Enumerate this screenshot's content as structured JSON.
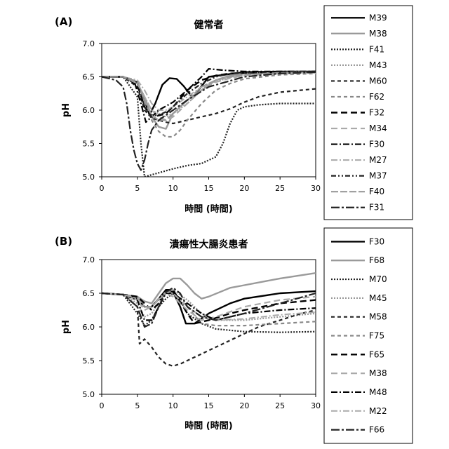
{
  "chart_data": [
    {
      "type": "line",
      "panel_label": "(A)",
      "title": "健常者",
      "xlabel": "時間 (時間)",
      "ylabel": "pH",
      "xlim": [
        0,
        30
      ],
      "ylim": [
        5.0,
        7.0
      ],
      "xticks": [
        0,
        5,
        10,
        15,
        20,
        25,
        30
      ],
      "yticks": [
        5.0,
        5.5,
        6.0,
        6.5,
        7.0
      ],
      "legend_position": "right",
      "series": [
        {
          "name": "M39",
          "color": "#000000",
          "dash": "solid",
          "width": 2.4,
          "x": [
            0,
            3,
            5,
            6,
            6.7,
            7.5,
            8.5,
            9.5,
            10.5,
            11.5,
            12.5,
            13,
            15,
            20,
            25,
            30
          ],
          "y": [
            6.5,
            6.5,
            6.42,
            6.15,
            5.93,
            6.1,
            6.38,
            6.48,
            6.47,
            6.36,
            6.22,
            6.22,
            6.5,
            6.57,
            6.58,
            6.58
          ]
        },
        {
          "name": "M38",
          "color": "#9a9a9a",
          "dash": "solid",
          "width": 2.4,
          "x": [
            0,
            3,
            5,
            6,
            7,
            8,
            9,
            10,
            12,
            14,
            16,
            18,
            20,
            25,
            30
          ],
          "y": [
            6.5,
            6.5,
            6.4,
            6.2,
            5.9,
            5.75,
            5.72,
            5.95,
            6.15,
            6.3,
            6.45,
            6.52,
            6.55,
            6.57,
            6.57
          ]
        },
        {
          "name": "F41",
          "color": "#222222",
          "dash": "2,2",
          "width": 2.2,
          "x": [
            0,
            3,
            5,
            5.5,
            6,
            8,
            10,
            12,
            14,
            16,
            17,
            18,
            19,
            20,
            22,
            25,
            28,
            30
          ],
          "y": [
            6.5,
            6.5,
            6.2,
            5.5,
            5.0,
            5.06,
            5.12,
            5.17,
            5.2,
            5.3,
            5.5,
            5.8,
            6.0,
            6.05,
            6.08,
            6.1,
            6.1,
            6.1
          ]
        },
        {
          "name": "M43",
          "color": "#9a9a9a",
          "dash": "2,2",
          "width": 2.2,
          "x": [
            0,
            3,
            5,
            6,
            7,
            8,
            9,
            10,
            12,
            15,
            20,
            25,
            30
          ],
          "y": [
            6.5,
            6.5,
            6.4,
            6.2,
            6.0,
            5.95,
            5.9,
            5.95,
            6.1,
            6.4,
            6.55,
            6.56,
            6.57
          ]
        },
        {
          "name": "M60",
          "color": "#222222",
          "dash": "5,4",
          "width": 2.2,
          "x": [
            0,
            3,
            5,
            6,
            7,
            8,
            9,
            10,
            12,
            14,
            16,
            18,
            20,
            22,
            25,
            28,
            30
          ],
          "y": [
            6.5,
            6.5,
            6.35,
            6.0,
            5.88,
            5.85,
            5.82,
            5.8,
            5.85,
            5.9,
            5.95,
            6.02,
            6.12,
            6.2,
            6.27,
            6.3,
            6.32
          ]
        },
        {
          "name": "F62",
          "color": "#888888",
          "dash": "5,4",
          "width": 2.2,
          "x": [
            0,
            3,
            5,
            6,
            7,
            8,
            9,
            10,
            11,
            12,
            14,
            16,
            18,
            20,
            25,
            30
          ],
          "y": [
            6.5,
            6.5,
            6.4,
            6.15,
            5.85,
            5.68,
            5.6,
            5.6,
            5.7,
            5.85,
            6.1,
            6.3,
            6.4,
            6.47,
            6.53,
            6.55
          ]
        },
        {
          "name": "F32",
          "color": "#000000",
          "dash": "9,5",
          "width": 2.4,
          "x": [
            0,
            3,
            5,
            6,
            7,
            8,
            9,
            10,
            12,
            14,
            16,
            18,
            20,
            25,
            30
          ],
          "y": [
            6.5,
            6.5,
            6.38,
            6.05,
            5.9,
            5.92,
            5.95,
            6.05,
            6.3,
            6.45,
            6.52,
            6.55,
            6.56,
            6.57,
            6.58
          ]
        },
        {
          "name": "M34",
          "color": "#aaaaaa",
          "dash": "9,5",
          "width": 2.2,
          "x": [
            0,
            3,
            5,
            6,
            7,
            8,
            9,
            10,
            12,
            14,
            16,
            18,
            20,
            25,
            30
          ],
          "y": [
            6.5,
            6.5,
            6.4,
            6.2,
            6.0,
            5.9,
            5.85,
            5.9,
            6.1,
            6.3,
            6.42,
            6.48,
            6.52,
            6.55,
            6.56
          ]
        },
        {
          "name": "F30",
          "color": "#000000",
          "dash": "9,3,2,3",
          "width": 2.2,
          "x": [
            0,
            3,
            4.5,
            5.5,
            6.2,
            7,
            8,
            10,
            12,
            14,
            15,
            17,
            20,
            25,
            30
          ],
          "y": [
            6.5,
            6.5,
            6.45,
            6.1,
            5.82,
            5.9,
            6.0,
            6.12,
            6.3,
            6.5,
            6.62,
            6.6,
            6.58,
            6.58,
            6.58
          ]
        },
        {
          "name": "M27",
          "color": "#aaaaaa",
          "dash": "9,3,2,3",
          "width": 2.0,
          "x": [
            0,
            3,
            5,
            6,
            7,
            8,
            9,
            10,
            12,
            14,
            16,
            18,
            20,
            25,
            30
          ],
          "y": [
            6.5,
            6.5,
            6.45,
            6.3,
            6.1,
            6.0,
            6.0,
            6.05,
            6.2,
            6.35,
            6.45,
            6.5,
            6.52,
            6.55,
            6.56
          ]
        },
        {
          "name": "M37",
          "color": "#222222",
          "dash": "7,3,2,3,2,3",
          "width": 2.2,
          "x": [
            0,
            3,
            5,
            6,
            6.7,
            7.5,
            8.5,
            9.5,
            10.5,
            12,
            14,
            16,
            18,
            20,
            25,
            30
          ],
          "y": [
            6.5,
            6.5,
            6.42,
            6.05,
            5.93,
            5.92,
            5.95,
            6.0,
            6.1,
            6.25,
            6.4,
            6.5,
            6.55,
            6.56,
            6.57,
            6.57
          ]
        },
        {
          "name": "F40",
          "color": "#9a9a9a",
          "dash": "10,3",
          "width": 2.2,
          "x": [
            0,
            3,
            5,
            6,
            7,
            8,
            9,
            10,
            12,
            14,
            16,
            18,
            20,
            25,
            30
          ],
          "y": [
            6.5,
            6.5,
            6.42,
            6.15,
            5.92,
            5.85,
            5.85,
            5.95,
            6.15,
            6.35,
            6.45,
            6.5,
            6.53,
            6.56,
            6.57
          ]
        },
        {
          "name": "F31",
          "color": "#222222",
          "dash": "12,3,3,3",
          "width": 2.2,
          "x": [
            0,
            2,
            3,
            3.5,
            4,
            4.5,
            5,
            5.5,
            6,
            6.5,
            7,
            8,
            10,
            12,
            15,
            20,
            25,
            30
          ],
          "y": [
            6.5,
            6.45,
            6.35,
            6.1,
            5.7,
            5.4,
            5.2,
            5.1,
            5.25,
            5.5,
            5.7,
            5.85,
            6.0,
            6.15,
            6.35,
            6.5,
            6.55,
            6.57
          ]
        }
      ]
    },
    {
      "type": "line",
      "panel_label": "(B)",
      "title": "潰瘍性大腸炎患者",
      "xlabel": "時間 (時間)",
      "ylabel": "pH",
      "xlim": [
        0,
        30
      ],
      "ylim": [
        5.0,
        7.0
      ],
      "xticks": [
        0,
        5,
        10,
        15,
        20,
        25,
        30
      ],
      "yticks": [
        5.0,
        5.5,
        6.0,
        6.5,
        7.0
      ],
      "legend_position": "right",
      "series": [
        {
          "name": "F30",
          "color": "#000000",
          "dash": "solid",
          "width": 2.4,
          "x": [
            0,
            3,
            5,
            6,
            7,
            8,
            9,
            10,
            11,
            11.8,
            13,
            15,
            18,
            20,
            25,
            30
          ],
          "y": [
            6.5,
            6.48,
            6.42,
            6.3,
            6.3,
            6.42,
            6.55,
            6.52,
            6.3,
            6.05,
            6.05,
            6.2,
            6.35,
            6.42,
            6.5,
            6.53
          ]
        },
        {
          "name": "F68",
          "color": "#9a9a9a",
          "dash": "solid",
          "width": 2.4,
          "x": [
            0,
            3,
            5,
            6,
            7,
            8,
            9,
            10,
            11,
            12,
            13,
            14,
            15,
            18,
            20,
            25,
            30
          ],
          "y": [
            6.5,
            6.48,
            6.45,
            6.38,
            6.35,
            6.5,
            6.65,
            6.72,
            6.72,
            6.62,
            6.5,
            6.42,
            6.45,
            6.58,
            6.62,
            6.72,
            6.8
          ]
        },
        {
          "name": "M70",
          "color": "#222222",
          "dash": "2,2",
          "width": 2.2,
          "x": [
            0,
            3,
            5,
            6,
            7,
            8,
            9,
            10,
            11,
            12,
            14,
            16,
            18,
            20,
            25,
            30
          ],
          "y": [
            6.5,
            6.48,
            6.2,
            6.02,
            6.1,
            6.3,
            6.42,
            6.5,
            6.4,
            6.2,
            6.05,
            5.97,
            5.95,
            5.93,
            5.92,
            5.93
          ]
        },
        {
          "name": "M45",
          "color": "#9a9a9a",
          "dash": "2,2",
          "width": 2.2,
          "x": [
            0,
            3,
            5,
            6,
            7,
            8,
            9,
            10,
            12,
            14,
            16,
            20,
            25,
            30
          ],
          "y": [
            6.5,
            6.48,
            6.35,
            6.15,
            6.2,
            6.35,
            6.5,
            6.55,
            6.4,
            6.2,
            6.1,
            6.1,
            6.15,
            6.2
          ]
        },
        {
          "name": "M58",
          "color": "#222222",
          "dash": "5,4",
          "width": 2.2,
          "x": [
            0,
            3,
            5,
            5.3,
            6,
            7,
            8,
            9,
            10,
            11,
            12,
            14,
            16,
            18,
            20,
            22,
            25,
            28,
            30
          ],
          "y": [
            6.5,
            6.48,
            6.3,
            5.75,
            5.82,
            5.7,
            5.55,
            5.45,
            5.42,
            5.45,
            5.5,
            5.6,
            5.7,
            5.8,
            5.9,
            6.0,
            6.1,
            6.2,
            6.25
          ]
        },
        {
          "name": "F75",
          "color": "#888888",
          "dash": "5,4",
          "width": 2.2,
          "x": [
            0,
            3,
            5,
            6,
            7,
            8,
            9,
            10,
            12,
            14,
            16,
            18,
            20,
            25,
            30
          ],
          "y": [
            6.5,
            6.48,
            6.42,
            6.3,
            6.3,
            6.4,
            6.5,
            6.5,
            6.3,
            6.05,
            6.02,
            6.02,
            6.02,
            6.05,
            6.08
          ]
        },
        {
          "name": "F65",
          "color": "#000000",
          "dash": "9,5",
          "width": 2.4,
          "x": [
            0,
            3,
            5,
            6,
            7,
            8,
            9,
            10,
            12,
            13,
            15,
            18,
            20,
            25,
            30
          ],
          "y": [
            6.5,
            6.48,
            6.45,
            6.35,
            6.25,
            6.35,
            6.55,
            6.55,
            6.2,
            6.05,
            6.1,
            6.2,
            6.25,
            6.35,
            6.4
          ]
        },
        {
          "name": "M38",
          "color": "#aaaaaa",
          "dash": "9,5",
          "width": 2.2,
          "x": [
            0,
            3,
            5,
            6,
            7,
            8,
            9,
            10,
            12,
            14,
            16,
            20,
            25,
            30
          ],
          "y": [
            6.5,
            6.48,
            6.4,
            6.25,
            6.3,
            6.4,
            6.5,
            6.45,
            6.25,
            6.1,
            6.15,
            6.3,
            6.4,
            6.45
          ]
        },
        {
          "name": "M48",
          "color": "#000000",
          "dash": "9,3,2,3",
          "width": 2.2,
          "x": [
            0,
            3,
            5,
            6,
            7,
            8,
            9,
            10,
            12,
            14,
            16,
            18,
            20,
            25,
            30
          ],
          "y": [
            6.5,
            6.48,
            6.4,
            6.1,
            6.1,
            6.3,
            6.5,
            6.5,
            6.35,
            6.2,
            6.1,
            6.15,
            6.2,
            6.25,
            6.28
          ]
        },
        {
          "name": "M22",
          "color": "#aaaaaa",
          "dash": "9,3,2,3",
          "width": 2.0,
          "x": [
            0,
            3,
            5,
            6,
            7,
            8,
            9,
            10,
            12,
            14,
            16,
            20,
            25,
            30
          ],
          "y": [
            6.5,
            6.48,
            6.42,
            6.3,
            6.3,
            6.42,
            6.52,
            6.5,
            6.3,
            6.15,
            6.1,
            6.12,
            6.18,
            6.22
          ]
        },
        {
          "name": "F66",
          "color": "#222222",
          "dash": "12,3,3,3",
          "width": 2.2,
          "x": [
            0,
            3,
            5,
            6,
            7,
            8,
            9,
            10,
            11,
            12,
            14,
            16,
            18,
            20,
            25,
            30
          ],
          "y": [
            6.5,
            6.48,
            6.3,
            6.0,
            6.05,
            6.3,
            6.52,
            6.58,
            6.5,
            6.3,
            6.15,
            6.1,
            6.15,
            6.2,
            6.35,
            6.5
          ]
        }
      ]
    }
  ]
}
